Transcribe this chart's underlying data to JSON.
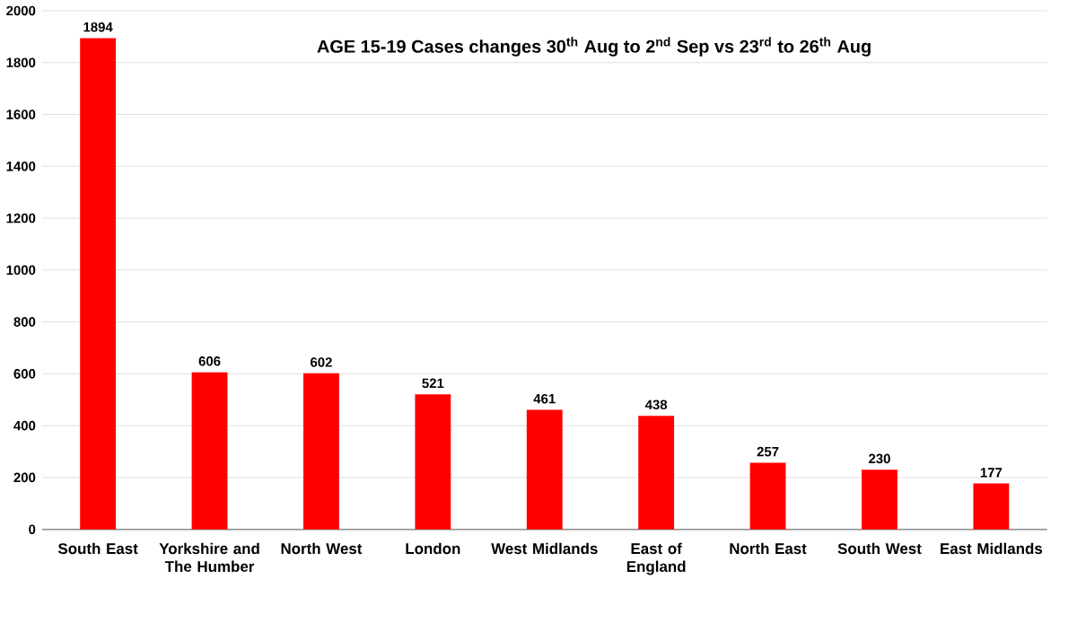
{
  "chart_data": {
    "type": "bar",
    "title": "AGE 15-19 Cases changes 30$^{th}$ Aug to 2$^{nd}$ Sep vs 23$^{rd}$ to 26$^{th}$ Aug",
    "categories": [
      "South East",
      "Yorkshire and The Humber",
      "North West",
      "London",
      "West Midlands",
      "East of England",
      "North East",
      "South West",
      "East Midlands"
    ],
    "values": [
      1894,
      606,
      602,
      521,
      461,
      438,
      257,
      230,
      177
    ],
    "color": "#ff0000",
    "ylim": [
      0,
      2000
    ],
    "yticks": [
      0,
      200,
      400,
      600,
      800,
      1000,
      1200,
      1400,
      1600,
      1800,
      2000
    ],
    "data_labels": true,
    "grid": true
  }
}
